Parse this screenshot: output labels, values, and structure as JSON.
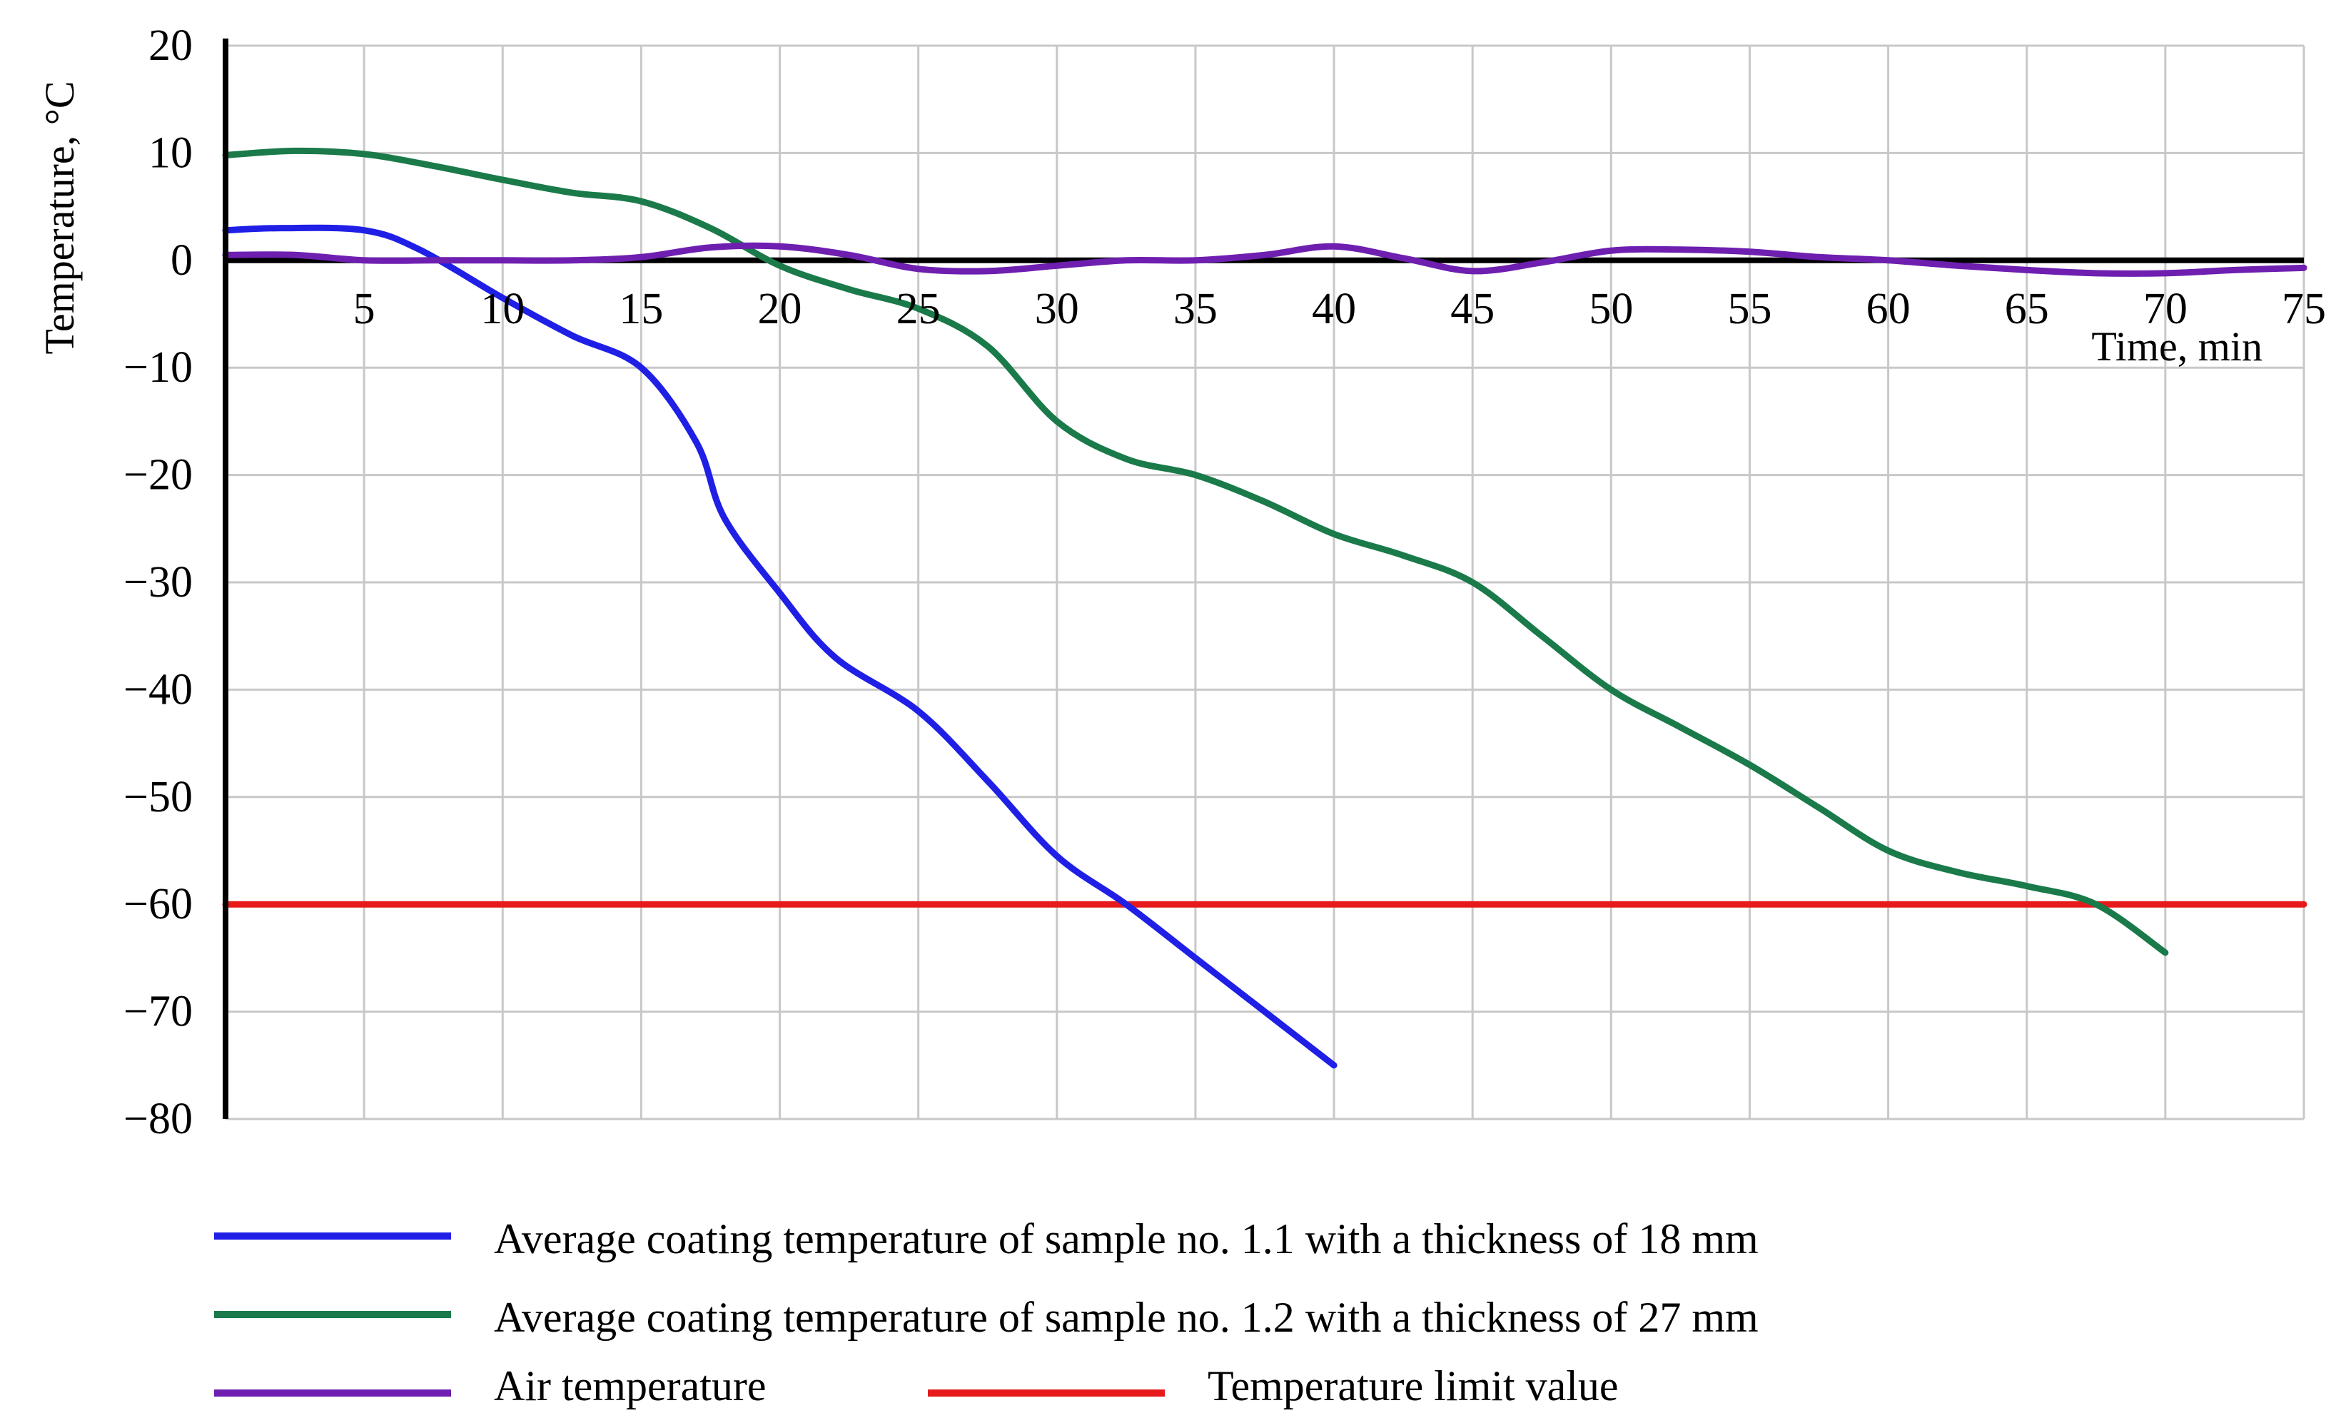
{
  "chart_data": {
    "type": "line",
    "xlabel": "Time, min",
    "ylabel": "Temperature, °C",
    "xlim": [
      0,
      75
    ],
    "ylim": [
      -80,
      20
    ],
    "xticks": [
      5,
      10,
      15,
      20,
      25,
      30,
      35,
      40,
      45,
      50,
      55,
      60,
      65,
      70,
      75
    ],
    "yticks": [
      20,
      10,
      0,
      -10,
      -20,
      -30,
      -40,
      -50,
      -60,
      -70,
      -80
    ],
    "grid": true,
    "legend_position": "bottom",
    "series": [
      {
        "name": "Average coating temperature of sample no. 1.1 with a thickness of 18 mm",
        "color": "#1f1fe6",
        "x": [
          0,
          2,
          5,
          7,
          10,
          12.5,
          15,
          17,
          18,
          20,
          22,
          25,
          27.5,
          30,
          32.5,
          35,
          37.5,
          40
        ],
        "y": [
          2.8,
          3.0,
          2.8,
          1.0,
          -3.5,
          -7.0,
          -10.0,
          -17.0,
          -24.0,
          -31.0,
          -37.0,
          -42.0,
          -48.5,
          -55.5,
          -60.0,
          -65.0,
          -70.0,
          -75.0
        ]
      },
      {
        "name": "Average coating temperature of sample no. 1.2 with a thickness of 27 mm",
        "color": "#1a7a4a",
        "x": [
          0,
          2.5,
          5,
          7.5,
          10,
          12.5,
          15,
          17.5,
          20,
          22.5,
          25,
          27.5,
          30,
          32.5,
          35,
          37.5,
          40,
          42.5,
          45,
          47.5,
          50,
          52.5,
          55,
          57.5,
          60,
          62.5,
          65,
          67.5,
          70
        ],
        "y": [
          9.8,
          10.2,
          9.9,
          8.8,
          7.5,
          6.3,
          5.5,
          3.0,
          -0.5,
          -2.7,
          -4.5,
          -8.0,
          -15.0,
          -18.5,
          -20.0,
          -22.5,
          -25.5,
          -27.5,
          -30.0,
          -35.0,
          -40.0,
          -43.5,
          -47.0,
          -51.0,
          -55.0,
          -57.0,
          -58.3,
          -60.0,
          -64.5
        ]
      },
      {
        "name": "Air temperature",
        "color": "#6e1fb0",
        "x": [
          0,
          2.5,
          5,
          7.5,
          10,
          12.5,
          15,
          17.5,
          20,
          22.5,
          25,
          27.5,
          30,
          32.5,
          35,
          37.5,
          40,
          42.5,
          45,
          47.5,
          50,
          52.5,
          55,
          57.5,
          60,
          62.5,
          65,
          67.5,
          70,
          72.5,
          75
        ],
        "y": [
          0.5,
          0.5,
          0.0,
          0.0,
          0.0,
          0.0,
          0.3,
          1.2,
          1.3,
          0.5,
          -0.8,
          -1.0,
          -0.5,
          0.0,
          0.0,
          0.5,
          1.3,
          0.2,
          -1.0,
          -0.2,
          0.9,
          1.0,
          0.8,
          0.3,
          0.0,
          -0.5,
          -0.9,
          -1.2,
          -1.2,
          -0.9,
          -0.7
        ]
      },
      {
        "name": "Temperature limit value",
        "color": "#e61a1a",
        "x": [
          0,
          75
        ],
        "y": [
          -60,
          -60
        ]
      }
    ]
  }
}
